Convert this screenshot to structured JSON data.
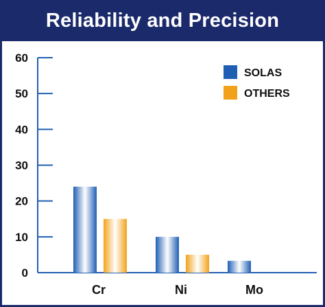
{
  "chart_data": {
    "type": "bar",
    "title": "Reliability and Precision",
    "xlabel": "",
    "ylabel": "",
    "ylim": [
      0,
      60
    ],
    "yticks": [
      0,
      10,
      20,
      30,
      40,
      50,
      60
    ],
    "categories": [
      "Cr",
      "Ni",
      "Mo"
    ],
    "series": [
      {
        "name": "SOLAS",
        "color": "#1f5fb3",
        "values": [
          24,
          10,
          3.3
        ]
      },
      {
        "name": "OTHERS",
        "color": "#f2a21a",
        "values": [
          15,
          5,
          null
        ]
      }
    ],
    "legend_position": "top-right",
    "grid": false,
    "colors": {
      "title_bar": "#1b2a6b",
      "axis": "#1f5fb3"
    }
  }
}
